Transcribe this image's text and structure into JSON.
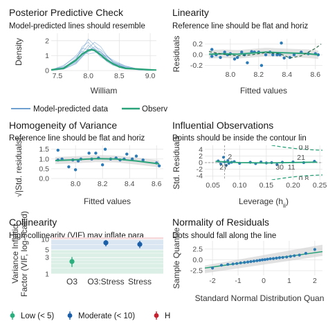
{
  "colors": {
    "observed": "#2aa37a",
    "predicted": "#1b68b3",
    "points": "#2c7bb6",
    "low": "#2ab07f",
    "moderate": "#1b5fa8",
    "high": "#c8202f"
  },
  "chart_data": [
    {
      "type": "line",
      "title": "Posterior Predictive Check",
      "subtitle": "Model-predicted lines should resemble",
      "xlabel": "William",
      "ylabel": "Density",
      "xticks": [
        "7.5",
        "8.0",
        "8.5",
        "9.0"
      ],
      "yticks": [
        "0",
        "1",
        "2"
      ],
      "xlim": [
        7.4,
        9.1
      ],
      "ylim": [
        0,
        2.5
      ],
      "legend": {
        "position": "bottom",
        "entries": [
          "Model-predicted data",
          "Observ"
        ]
      },
      "series": [
        {
          "name": "Observ",
          "x": [
            7.4,
            7.6,
            7.8,
            7.9,
            8.0,
            8.05,
            8.1,
            8.2,
            8.3,
            8.4,
            8.5,
            8.6,
            8.8,
            9.0,
            9.1
          ],
          "y": [
            0.05,
            0.15,
            0.7,
            1.1,
            1.35,
            1.4,
            1.35,
            1.05,
            0.7,
            0.45,
            0.25,
            0.15,
            0.1,
            0.05,
            0.03
          ]
        },
        {
          "name": "Model-predicted data",
          "x": [
            7.4,
            7.6,
            7.8,
            7.9,
            8.0,
            8.1,
            8.2,
            8.3,
            8.4,
            8.6,
            8.8,
            9.0,
            9.1
          ],
          "y": [
            0.02,
            0.2,
            0.8,
            1.4,
            2.1,
            1.7,
            1.2,
            0.8,
            0.5,
            0.2,
            0.08,
            0.03,
            0.02
          ]
        },
        {
          "name": "Model-predicted data",
          "x": [
            7.4,
            7.6,
            7.8,
            7.9,
            8.0,
            8.1,
            8.2,
            8.3,
            8.4,
            8.6,
            8.8,
            9.0,
            9.1
          ],
          "y": [
            0.03,
            0.3,
            1.0,
            1.5,
            1.4,
            1.5,
            1.1,
            0.9,
            0.6,
            0.25,
            0.08,
            0.04,
            0.02
          ]
        },
        {
          "name": "Model-predicted data",
          "x": [
            7.4,
            7.6,
            7.8,
            7.9,
            8.0,
            8.1,
            8.2,
            8.3,
            8.4,
            8.6,
            8.8,
            9.0,
            9.1
          ],
          "y": [
            0.05,
            0.25,
            0.6,
            1.2,
            1.7,
            1.3,
            1.0,
            0.6,
            0.35,
            0.15,
            0.05,
            0.03,
            0.02
          ]
        },
        {
          "name": "Model-predicted data",
          "x": [
            7.4,
            7.6,
            7.8,
            7.9,
            8.0,
            8.1,
            8.2,
            8.3,
            8.4,
            8.6,
            8.8,
            9.0,
            9.1
          ],
          "y": [
            0.02,
            0.1,
            0.5,
            1.0,
            1.3,
            1.6,
            1.4,
            1.0,
            0.6,
            0.3,
            0.1,
            0.04,
            0.02
          ]
        },
        {
          "name": "Model-predicted data",
          "x": [
            7.4,
            7.6,
            7.8,
            7.9,
            8.0,
            8.1,
            8.2,
            8.3,
            8.4,
            8.6,
            8.8,
            9.0,
            9.1
          ],
          "y": [
            0.04,
            0.35,
            0.9,
            1.3,
            1.1,
            1.2,
            1.3,
            0.8,
            0.4,
            0.2,
            0.07,
            0.03,
            0.02
          ]
        },
        {
          "name": "Model-predicted data",
          "x": [
            7.4,
            7.6,
            7.8,
            7.9,
            8.0,
            8.1,
            8.2,
            8.3,
            8.4,
            8.6,
            8.8,
            9.0,
            9.1
          ],
          "y": [
            0.02,
            0.15,
            0.7,
            1.6,
            1.9,
            1.4,
            0.9,
            0.7,
            0.5,
            0.2,
            0.06,
            0.03,
            0.02
          ]
        },
        {
          "name": "Model-predicted data",
          "x": [
            7.4,
            7.6,
            7.8,
            7.9,
            8.0,
            8.1,
            8.2,
            8.3,
            8.4,
            8.6,
            8.8,
            9.0,
            9.1
          ],
          "y": [
            0.03,
            0.2,
            0.55,
            0.95,
            1.25,
            1.45,
            1.2,
            0.95,
            0.7,
            0.3,
            0.1,
            0.04,
            0.02
          ]
        },
        {
          "name": "Model-predicted data",
          "x": [
            7.4,
            7.6,
            7.8,
            7.9,
            8.0,
            8.1,
            8.2,
            8.3,
            8.4,
            8.6,
            8.8,
            9.0,
            9.1
          ],
          "y": [
            0.02,
            0.1,
            0.45,
            0.9,
            1.5,
            1.9,
            1.6,
            1.0,
            0.55,
            0.2,
            0.06,
            0.03,
            0.02
          ]
        }
      ]
    },
    {
      "type": "scatter",
      "title": "Linearity",
      "subtitle": "Reference line should be flat and horiz",
      "xlabel": "Fitted values",
      "ylabel": "Residuals",
      "xticks": [
        "8.0",
        "8.2",
        "8.4",
        "8.6"
      ],
      "yticks": [
        "-0.2",
        "0.0",
        "0.2"
      ],
      "xlim": [
        7.82,
        8.65
      ],
      "ylim": [
        -0.27,
        0.3
      ],
      "x": [
        7.87,
        7.87,
        7.9,
        7.93,
        7.96,
        7.98,
        8.0,
        8.03,
        8.05,
        8.08,
        8.1,
        8.12,
        8.15,
        8.17,
        8.2,
        8.22,
        8.25,
        8.28,
        8.3,
        8.33,
        8.35,
        8.36,
        8.38,
        8.42,
        8.45,
        8.5,
        8.55,
        8.6,
        8.62
      ],
      "y": [
        0.1,
        -0.03,
        0.0,
        -0.05,
        0.05,
        0.0,
        0.02,
        -0.08,
        -0.05,
        0.05,
        0.0,
        -0.15,
        0.06,
        0.05,
        0.05,
        -0.2,
        0.0,
        0.05,
        0.0,
        0.0,
        0.0,
        0.22,
        -0.06,
        -0.05,
        0.0,
        0.05,
        0.02,
        0.02,
        0.0
      ],
      "smooth": {
        "x": [
          7.85,
          7.95,
          8.05,
          8.15,
          8.25,
          8.35,
          8.45,
          8.55,
          8.62
        ],
        "y": [
          0.01,
          0.02,
          0.01,
          0.03,
          0.05,
          0.04,
          0.03,
          0.02,
          0.0
        ]
      },
      "loess_dashed": {
        "x": [
          7.85,
          7.95,
          8.05,
          8.15,
          8.25,
          8.35,
          8.42,
          8.5,
          8.6,
          8.64
        ],
        "y": [
          0.06,
          0.01,
          -0.02,
          0.0,
          0.04,
          0.02,
          -0.06,
          -0.02,
          0.12,
          0.2
        ]
      }
    },
    {
      "type": "scatter",
      "title": "Homogeneity of Variance",
      "subtitle": "Reference line should be flat and horiz",
      "xlabel": "Fitted values",
      "ylabel": "√|Std. residuals|",
      "xticks": [
        "8.0",
        "8.2",
        "8.4",
        "8.6"
      ],
      "yticks": [
        "0.0",
        "0.5",
        "1.0",
        "1.5"
      ],
      "xlim": [
        7.82,
        8.65
      ],
      "ylim": [
        0,
        1.7
      ],
      "x": [
        7.87,
        7.87,
        7.9,
        7.95,
        7.98,
        8.0,
        8.02,
        8.04,
        8.1,
        8.12,
        8.15,
        8.17,
        8.2,
        8.22,
        8.26,
        8.3,
        8.33,
        8.36,
        8.38,
        8.42,
        8.45,
        8.5,
        8.6,
        8.62
      ],
      "y": [
        1.45,
        0.95,
        1.0,
        0.6,
        0.95,
        0.45,
        0.9,
        1.0,
        1.3,
        1.0,
        1.3,
        1.05,
        0.7,
        1.5,
        1.0,
        1.05,
        0.95,
        1.0,
        1.25,
        1.0,
        1.15,
        0.95,
        0.8,
        0.65
      ],
      "smooth": {
        "x": [
          7.85,
          8.0,
          8.15,
          8.3,
          8.45,
          8.62
        ],
        "y": [
          0.92,
          0.96,
          1.02,
          1.0,
          0.9,
          0.75
        ]
      }
    },
    {
      "type": "scatter",
      "title": "Influential Observations",
      "subtitle": "Points should be inside the contour lin",
      "xlabel": "Leverage (h",
      "xlabel_sub": "ii",
      "xlabel_end": ")",
      "ylabel": "Std. Residuals",
      "xticks": [
        "0.05",
        "0.10",
        "0.15",
        "0.20",
        "0.25"
      ],
      "yticks": [
        "-4",
        "-2",
        "0",
        "2",
        "4"
      ],
      "xlim": [
        0.035,
        0.255
      ],
      "ylim": [
        -5.2,
        5.2
      ],
      "x": [
        0.06,
        0.065,
        0.07,
        0.072,
        0.075,
        0.078,
        0.08,
        0.085,
        0.09,
        0.1,
        0.12,
        0.13,
        0.14,
        0.15,
        0.16,
        0.17,
        0.18,
        0.2,
        0.22,
        0.24
      ],
      "y": [
        0.5,
        -0.4,
        1.6,
        0.2,
        -0.8,
        0.6,
        -0.2,
        0.1,
        0.3,
        -0.2,
        0.1,
        -0.3,
        0.2,
        -0.1,
        0.0,
        -0.6,
        0.1,
        0.2,
        0.0,
        0.4
      ],
      "labels": [
        {
          "text": "2",
          "x": 0.082,
          "y": 1.8
        },
        {
          "text": "27",
          "x": 0.07,
          "y": -1.4
        },
        {
          "text": "30",
          "x": 0.175,
          "y": -1.3
        },
        {
          "text": "11",
          "x": 0.197,
          "y": -1.3
        },
        {
          "text": "21",
          "x": 0.215,
          "y": 1.6
        },
        {
          "text": "0.8",
          "x": 0.22,
          "y": 4.6
        },
        {
          "text": "0.8",
          "x": 0.22,
          "y": -4.8
        }
      ]
    },
    {
      "type": "scatter",
      "title": "Collinearity",
      "subtitle": "High collinearity (VIF) may inflate para",
      "xlabel": "",
      "ylabel": "Variance Inflation Factor (VIF, log-scaled)",
      "ylabel_lines": [
        "Variance Inflatio",
        "Factor (VIF, log-scaled)"
      ],
      "categories": [
        "O3",
        "O3:Stress",
        "Stress"
      ],
      "yticks": [
        "1",
        "3",
        "5",
        "10"
      ],
      "ylim": [
        1,
        10
      ],
      "y_scale": "log",
      "values": [
        2.3,
        8.0,
        7.2
      ],
      "ci_low": [
        1.6,
        6.3,
        5.6
      ],
      "ci_high": [
        3.1,
        9.6,
        9.1
      ],
      "categories_level": [
        "Low",
        "Moderate",
        "Moderate"
      ],
      "legend": {
        "position": "bottom",
        "entries": [
          "Low (< 5)",
          "Moderate (< 10)",
          "H"
        ]
      }
    },
    {
      "type": "scatter",
      "title": "Normality of Residuals",
      "subtitle": "Dots should fall along the line",
      "xlabel": "Standard Normal Distribution Quan",
      "ylabel": "Sample Quantile",
      "xticks": [
        "-2",
        "-1",
        "0",
        "1",
        "2"
      ],
      "yticks": [
        "-2.5",
        "0.0",
        "2.5"
      ],
      "xlim": [
        -2.3,
        2.3
      ],
      "ylim": [
        -3.6,
        4.4
      ],
      "x": [
        -2.0,
        -1.65,
        -1.4,
        -1.2,
        -1.05,
        -0.9,
        -0.75,
        -0.62,
        -0.5,
        -0.38,
        -0.26,
        -0.15,
        -0.05,
        0.05,
        0.15,
        0.26,
        0.38,
        0.5,
        0.62,
        0.75,
        0.9,
        1.05,
        1.2,
        1.4,
        1.65,
        2.0
      ],
      "y": [
        -1.9,
        -1.25,
        -1.05,
        -0.95,
        -0.85,
        -0.7,
        -0.6,
        -0.5,
        -0.4,
        -0.3,
        -0.2,
        -0.1,
        0.0,
        0.05,
        0.15,
        0.25,
        0.3,
        0.4,
        0.5,
        0.55,
        0.65,
        0.8,
        0.95,
        1.1,
        1.5,
        2.4
      ],
      "reference": {
        "x": [
          -2.3,
          2.3
        ],
        "y": [
          -1.9,
          1.9
        ]
      }
    }
  ]
}
